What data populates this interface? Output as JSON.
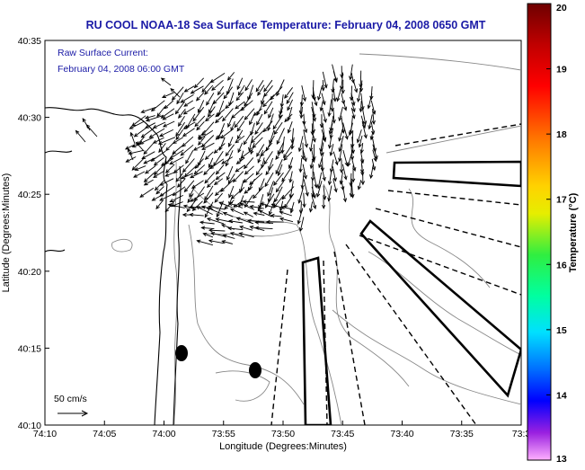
{
  "title": "RU COOL  NOAA-18  Sea Surface Temperature:  February 04, 2008 0650 GMT",
  "overlay": {
    "line1": "Raw Surface Current:",
    "line2": "February 04, 2008 06:00 GMT"
  },
  "scale": {
    "label": "50 cm/s"
  },
  "axes": {
    "xlabel": "Longitude (Degrees:Minutes)",
    "ylabel": "Latitude (Degrees:Minutes)",
    "xticks": [
      "74:10",
      "74:05",
      "74:00",
      "73:55",
      "73:50",
      "73:45",
      "73:40",
      "73:35",
      "73:3"
    ],
    "yticks": [
      "40:35",
      "40:30",
      "40:25",
      "40:20",
      "40:15",
      "40:10"
    ]
  },
  "colorbar": {
    "label": "Temperature (°C)",
    "ticks": [
      "20",
      "19",
      "18",
      "17",
      "16",
      "15",
      "14",
      "13"
    ],
    "range": [
      13,
      20
    ]
  },
  "colors": {
    "title": "#1a1aa6",
    "overlay": "#1a1aa6",
    "arrows": "#000000",
    "contours": "#888888"
  }
}
